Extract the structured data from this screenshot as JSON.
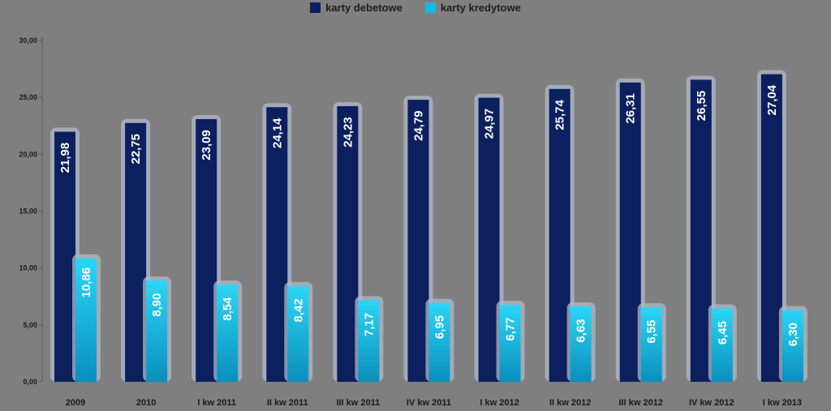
{
  "legend": {
    "debit_label": "karty debetowe",
    "credit_label": "karty kredytowe"
  },
  "colors": {
    "debit": "#0c1f5e",
    "credit": "#14b8e0",
    "background": "#7f7f7f",
    "halo": "#b0b8c8"
  },
  "chart_data": {
    "type": "bar",
    "categories": [
      "2009",
      "2010",
      "I kw 2011",
      "II kw 2011",
      "III kw 2011",
      "IV kw 2011",
      "I kw 2012",
      "II kw 2012",
      "III kw 2012",
      "IV kw 2012",
      "I kw 2013"
    ],
    "series": [
      {
        "name": "karty debetowe",
        "values": [
          21.98,
          22.75,
          23.09,
          24.14,
          24.23,
          24.79,
          24.97,
          25.74,
          26.31,
          26.55,
          27.04
        ],
        "labels": [
          "21,98",
          "22,75",
          "23,09",
          "24,14",
          "24,23",
          "24,79",
          "24,97",
          "25,74",
          "26,31",
          "26,55",
          "27,04"
        ]
      },
      {
        "name": "karty kredytowe",
        "values": [
          10.86,
          8.9,
          8.54,
          8.42,
          7.17,
          6.95,
          6.77,
          6.63,
          6.55,
          6.45,
          6.3
        ],
        "labels": [
          "10,86",
          "8,90",
          "8,54",
          "8,42",
          "7,17",
          "6,95",
          "6,77",
          "6,63",
          "6,55",
          "6,45",
          "6,30"
        ]
      }
    ],
    "ylim": [
      0,
      30
    ],
    "yticks": [
      0,
      5,
      10,
      15,
      20,
      25,
      30
    ],
    "ytick_labels": [
      "0,00",
      "5,00",
      "10,00",
      "15,00",
      "20,00",
      "25,00",
      "30,00"
    ],
    "grid": false,
    "legend_position": "top-center"
  }
}
